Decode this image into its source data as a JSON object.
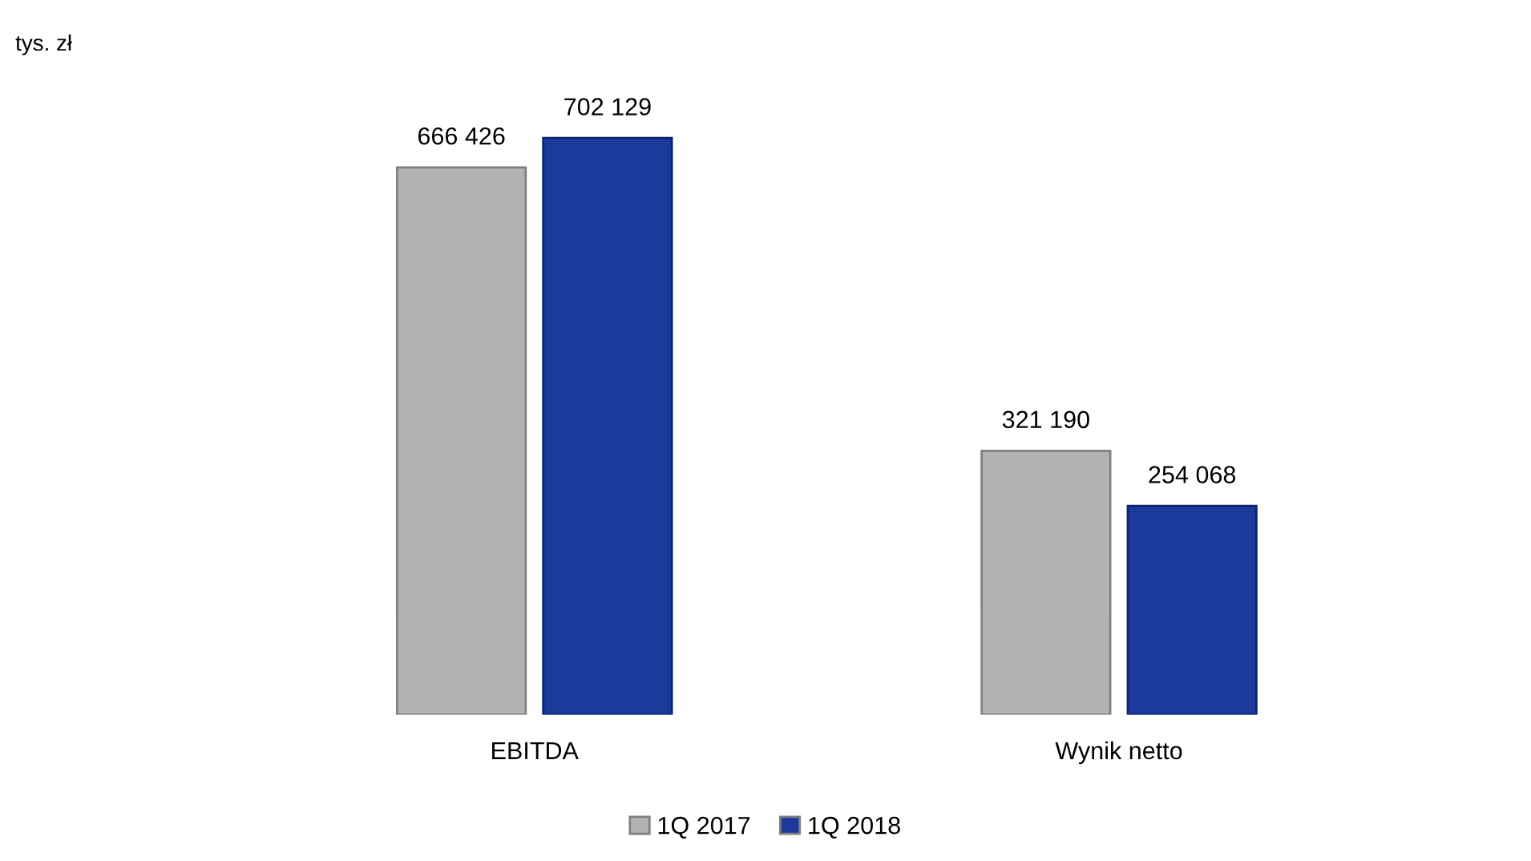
{
  "chart_data": {
    "type": "bar",
    "annotations": [
      "tys. zł"
    ],
    "categories": [
      "EBITDA",
      "Wynik netto"
    ],
    "series": [
      {
        "name": "1Q 2017",
        "color": "#b3b3b3",
        "values": [
          666426,
          321190
        ]
      },
      {
        "name": "1Q 2018",
        "color": "#1c3a9c",
        "values": [
          702129,
          254068
        ]
      }
    ],
    "data_labels": true,
    "legend": "bottom",
    "grid": false
  }
}
